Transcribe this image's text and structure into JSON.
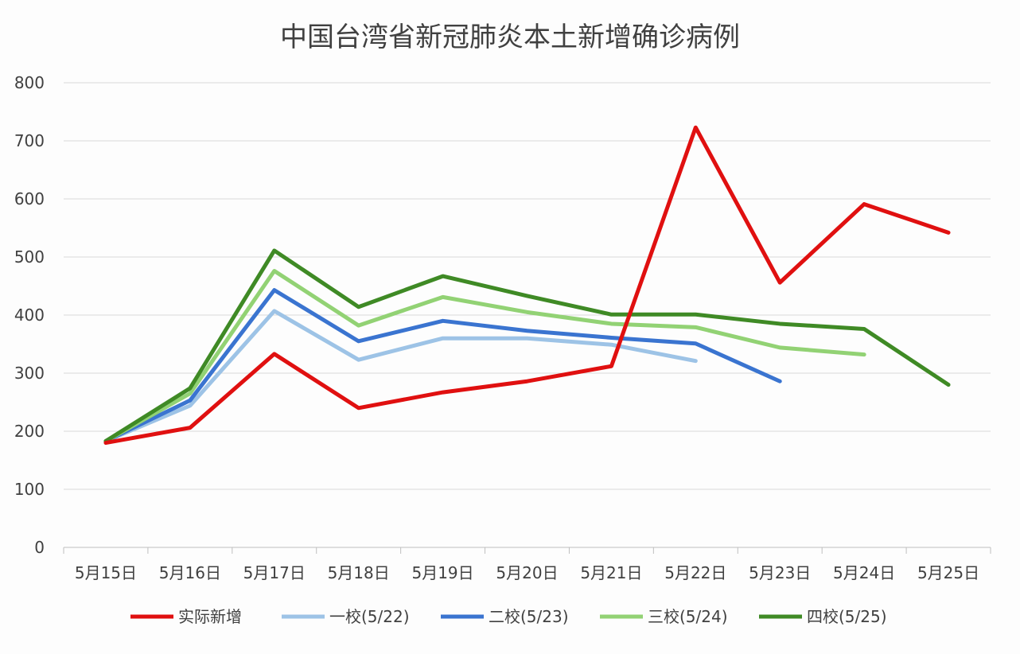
{
  "chart_data": {
    "type": "line",
    "title": "中国台湾省新冠肺炎本土新增确诊病例",
    "xlabel": "",
    "ylabel": "",
    "categories": [
      "5月15日",
      "5月16日",
      "5月17日",
      "5月18日",
      "5月19日",
      "5月20日",
      "5月21日",
      "5月22日",
      "5月23日",
      "5月24日",
      "5月25日"
    ],
    "ylim": [
      0,
      800
    ],
    "yticks": [
      0,
      100,
      200,
      300,
      400,
      500,
      600,
      700,
      800
    ],
    "ytick_labels": [
      "0",
      "100",
      "200",
      "300",
      "400",
      "500",
      "600",
      "700",
      "800"
    ],
    "grid": true,
    "legend_position": "bottom",
    "series": [
      {
        "name": "实际新增",
        "color": "#e01010",
        "values": [
          180,
          206,
          333,
          240,
          267,
          286,
          312,
          723,
          456,
          591,
          542
        ]
      },
      {
        "name": "一校(5/22)",
        "color": "#9dc3e6",
        "values": [
          183,
          244,
          407,
          323,
          360,
          360,
          349,
          321,
          null,
          null,
          null
        ]
      },
      {
        "name": "二校(5/23)",
        "color": "#3a74d0",
        "values": [
          183,
          253,
          443,
          355,
          390,
          373,
          361,
          351,
          286,
          null,
          null
        ]
      },
      {
        "name": "三校(5/24)",
        "color": "#92d274",
        "values": [
          183,
          265,
          476,
          382,
          431,
          405,
          385,
          379,
          344,
          332,
          null
        ]
      },
      {
        "name": "四校(5/25)",
        "color": "#3f8a25",
        "values": [
          183,
          274,
          511,
          414,
          467,
          433,
          401,
          401,
          385,
          376,
          280
        ]
      }
    ]
  }
}
